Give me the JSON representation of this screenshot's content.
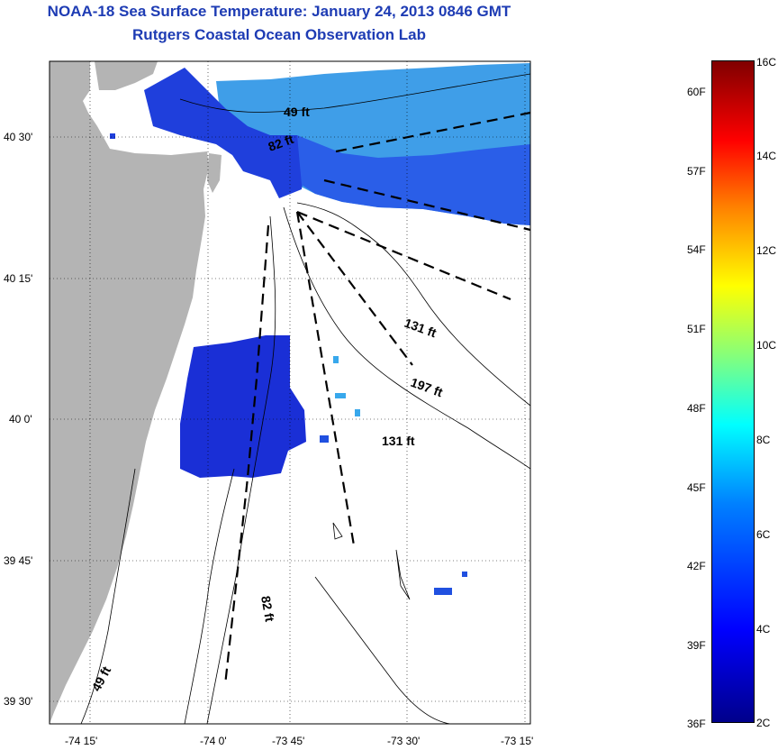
{
  "title": "NOAA-18 Sea Surface Temperature:  January 24, 2013 0846 GMT",
  "subtitle": "Rutgers Coastal Ocean Observation Lab",
  "colors": {
    "land": "#b4b4b4",
    "title": "#1e3cb4",
    "cold": "#1a2fd6",
    "mid": "#2a6df0",
    "shelf": "#38a8ec"
  },
  "map": {
    "lat_labels": [
      "40 30'",
      "40 15'",
      "40 0'",
      "39 45'",
      "39 30'"
    ],
    "lon_labels": [
      "-74 15'",
      "-74 0'",
      "-73 45'",
      "-73 30'",
      "-73 15'"
    ],
    "depth_labels": [
      "49 ft",
      "82 ft",
      "131 ft",
      "197 ft",
      "131 ft",
      "82 ft",
      "49 ft"
    ]
  },
  "colorbar": {
    "celsius": [
      "16C",
      "14C",
      "12C",
      "10C",
      "8C",
      "6C",
      "4C",
      "2C"
    ],
    "fahrenheit": [
      "60F",
      "57F",
      "54F",
      "51F",
      "48F",
      "45F",
      "42F",
      "39F",
      "36F"
    ]
  }
}
